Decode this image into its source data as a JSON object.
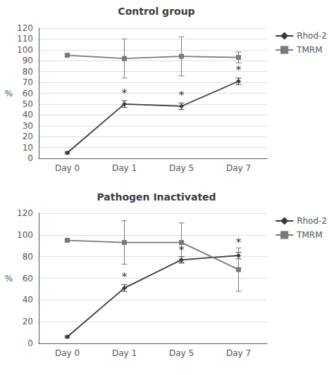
{
  "chart_data": [
    {
      "type": "line",
      "title": "Control group",
      "categories": [
        "Day 0",
        "Day 1",
        "Day 5",
        "Day 7"
      ],
      "ylabel": "%",
      "series": [
        {
          "name": "Rhod-2",
          "color": "#3a3a3a",
          "marker": "diamond",
          "values": [
            5,
            50,
            48,
            71
          ],
          "errors": [
            1,
            3,
            3,
            3
          ]
        },
        {
          "name": "TMRM",
          "color": "#7a7a7a",
          "marker": "square",
          "values": [
            95,
            92,
            94,
            93
          ],
          "errors": [
            1,
            18,
            18,
            5
          ]
        }
      ],
      "annotations": [
        {
          "x": "Day 1",
          "y": 55,
          "text": "*"
        },
        {
          "x": "Day 5",
          "y": 53,
          "text": "*"
        },
        {
          "x": "Day 7",
          "y": 76,
          "text": "*"
        }
      ],
      "ylim": [
        0,
        120
      ],
      "yticks": [
        0,
        10,
        20,
        30,
        40,
        50,
        60,
        70,
        80,
        90,
        100,
        110,
        120
      ],
      "grid": true,
      "legend": "right"
    },
    {
      "type": "line",
      "title": "Pathogen Inactivated",
      "categories": [
        "Day 0",
        "Day 1",
        "Day 5",
        "Day 7"
      ],
      "ylabel": "%",
      "series": [
        {
          "name": "Rhod-2",
          "color": "#3a3a3a",
          "marker": "diamond",
          "values": [
            6,
            51,
            77,
            81
          ],
          "errors": [
            1,
            3,
            3,
            3
          ]
        },
        {
          "name": "TMRM",
          "color": "#7a7a7a",
          "marker": "square",
          "values": [
            95,
            93,
            93,
            68
          ],
          "errors": [
            1,
            20,
            18,
            20
          ]
        }
      ],
      "annotations": [
        {
          "x": "Day 1",
          "y": 56,
          "text": "*"
        },
        {
          "x": "Day 5",
          "y": 81,
          "text": "*"
        },
        {
          "x": "Day 7",
          "y": 88,
          "text": "*"
        }
      ],
      "ylim": [
        0,
        120
      ],
      "yticks": [
        0,
        20,
        40,
        60,
        80,
        100,
        120
      ],
      "grid": true,
      "legend": "right"
    }
  ]
}
